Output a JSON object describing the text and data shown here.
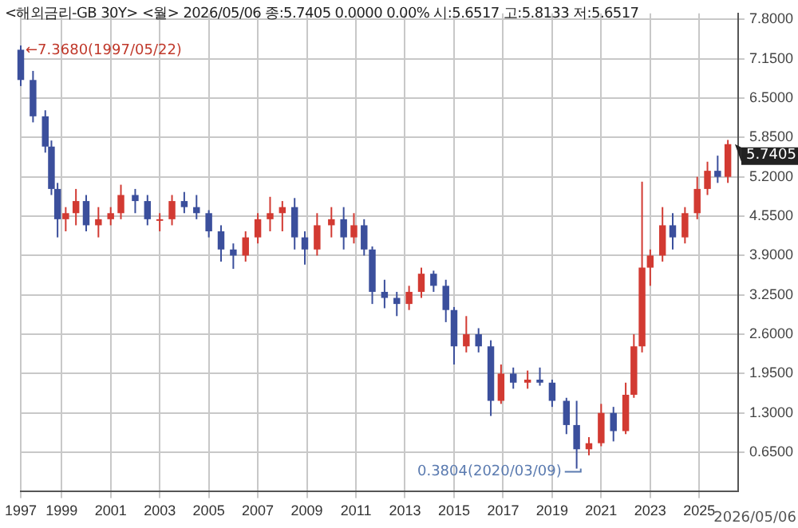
{
  "chart_data": {
    "type": "candlestick",
    "title": "<해외금리-GB 30Y> <월> 2026/05/06 종:5.7405 0.0000 0.00% 시:5.6517 고:5.8133 저:5.6517",
    "x": [
      "1997-05",
      "1997-11",
      "1998-05",
      "1998-08",
      "1998-11",
      "1999-03",
      "1999-08",
      "2000-01",
      "2000-07",
      "2001-01",
      "2001-06",
      "2002-01",
      "2002-07",
      "2003-01",
      "2003-07",
      "2004-01",
      "2004-07",
      "2005-01",
      "2005-07",
      "2006-01",
      "2006-07",
      "2007-01",
      "2007-07",
      "2008-01",
      "2008-07",
      "2008-12",
      "2009-06",
      "2010-01",
      "2010-07",
      "2010-12",
      "2011-05",
      "2011-09",
      "2012-03",
      "2012-09",
      "2013-03",
      "2013-09",
      "2014-03",
      "2014-09",
      "2015-01",
      "2015-07",
      "2016-01",
      "2016-07",
      "2016-12",
      "2017-06",
      "2018-01",
      "2018-07",
      "2019-01",
      "2019-08",
      "2020-01",
      "2020-07",
      "2021-01",
      "2021-07",
      "2022-01",
      "2022-05",
      "2022-09",
      "2023-01",
      "2023-07",
      "2023-12",
      "2024-06",
      "2024-12",
      "2025-05",
      "2025-10",
      "2026-03"
    ],
    "ohlc": [
      [
        7.3,
        7.37,
        6.7,
        6.8
      ],
      [
        6.8,
        6.95,
        6.1,
        6.2
      ],
      [
        6.2,
        6.3,
        5.6,
        5.7
      ],
      [
        5.7,
        5.8,
        4.9,
        5.0
      ],
      [
        5.0,
        5.1,
        4.2,
        4.5
      ],
      [
        4.5,
        4.7,
        4.3,
        4.6
      ],
      [
        4.6,
        5.0,
        4.4,
        4.8
      ],
      [
        4.8,
        4.9,
        4.3,
        4.4
      ],
      [
        4.4,
        4.7,
        4.2,
        4.5
      ],
      [
        4.5,
        4.7,
        4.4,
        4.6
      ],
      [
        4.6,
        5.07,
        4.5,
        4.9
      ],
      [
        4.9,
        5.0,
        4.6,
        4.8
      ],
      [
        4.8,
        4.9,
        4.4,
        4.5
      ],
      [
        4.5,
        4.6,
        4.3,
        4.5
      ],
      [
        4.5,
        4.9,
        4.4,
        4.8
      ],
      [
        4.8,
        4.95,
        4.6,
        4.7
      ],
      [
        4.7,
        4.9,
        4.5,
        4.6
      ],
      [
        4.6,
        4.65,
        4.2,
        4.3
      ],
      [
        4.3,
        4.4,
        3.8,
        4.0
      ],
      [
        4.0,
        4.1,
        3.68,
        3.9
      ],
      [
        3.9,
        4.3,
        3.8,
        4.2
      ],
      [
        4.2,
        4.6,
        4.1,
        4.5
      ],
      [
        4.5,
        4.87,
        4.3,
        4.6
      ],
      [
        4.6,
        4.8,
        4.3,
        4.7
      ],
      [
        4.7,
        4.85,
        4.0,
        4.2
      ],
      [
        4.2,
        4.3,
        3.75,
        4.0
      ],
      [
        4.0,
        4.6,
        3.9,
        4.4
      ],
      [
        4.4,
        4.7,
        4.2,
        4.5
      ],
      [
        4.5,
        4.7,
        4.0,
        4.2
      ],
      [
        4.2,
        4.6,
        4.1,
        4.4
      ],
      [
        4.4,
        4.5,
        3.9,
        4.0
      ],
      [
        4.0,
        4.05,
        3.1,
        3.3
      ],
      [
        3.3,
        3.5,
        3.03,
        3.2
      ],
      [
        3.2,
        3.3,
        2.9,
        3.1
      ],
      [
        3.1,
        3.4,
        3.0,
        3.3
      ],
      [
        3.3,
        3.7,
        3.2,
        3.6
      ],
      [
        3.6,
        3.65,
        3.3,
        3.4
      ],
      [
        3.4,
        3.5,
        2.8,
        3.0
      ],
      [
        3.0,
        3.05,
        2.1,
        2.4
      ],
      [
        2.4,
        2.9,
        2.3,
        2.6
      ],
      [
        2.6,
        2.7,
        2.3,
        2.4
      ],
      [
        2.4,
        2.5,
        1.25,
        1.5
      ],
      [
        1.5,
        2.1,
        1.45,
        1.95
      ],
      [
        1.95,
        2.05,
        1.7,
        1.8
      ],
      [
        1.8,
        2.0,
        1.7,
        1.85
      ],
      [
        1.85,
        2.05,
        1.75,
        1.8
      ],
      [
        1.8,
        1.85,
        1.4,
        1.5
      ],
      [
        1.5,
        1.55,
        0.95,
        1.1
      ],
      [
        1.1,
        1.5,
        0.38,
        0.7
      ],
      [
        0.7,
        0.9,
        0.6,
        0.8
      ],
      [
        0.8,
        1.45,
        0.75,
        1.3
      ],
      [
        1.3,
        1.4,
        0.83,
        1.0
      ],
      [
        1.0,
        1.8,
        0.95,
        1.6
      ],
      [
        1.6,
        2.6,
        1.55,
        2.4
      ],
      [
        2.4,
        5.12,
        2.3,
        3.7
      ],
      [
        3.7,
        4.0,
        3.4,
        3.9
      ],
      [
        3.9,
        4.7,
        3.8,
        4.4
      ],
      [
        4.4,
        4.6,
        4.0,
        4.2
      ],
      [
        4.2,
        4.7,
        4.1,
        4.6
      ],
      [
        4.6,
        5.2,
        4.5,
        5.0
      ],
      [
        5.0,
        5.45,
        4.9,
        5.3
      ],
      [
        5.3,
        5.55,
        5.1,
        5.2
      ],
      [
        5.2,
        5.81,
        5.1,
        5.74
      ]
    ],
    "colors": [
      "#3b4f9c",
      "#3b4f9c",
      "#3b4f9c",
      "#3b4f9c",
      "#3b4f9c",
      "#d23a32",
      "#d23a32",
      "#3b4f9c",
      "#d23a32",
      "#d23a32",
      "#d23a32",
      "#3b4f9c",
      "#3b4f9c",
      "#d23a32",
      "#d23a32",
      "#3b4f9c",
      "#3b4f9c",
      "#3b4f9c",
      "#3b4f9c",
      "#3b4f9c",
      "#d23a32",
      "#d23a32",
      "#d23a32",
      "#d23a32",
      "#3b4f9c",
      "#3b4f9c",
      "#d23a32",
      "#d23a32",
      "#3b4f9c",
      "#d23a32",
      "#3b4f9c",
      "#3b4f9c",
      "#3b4f9c",
      "#3b4f9c",
      "#d23a32",
      "#d23a32",
      "#3b4f9c",
      "#3b4f9c",
      "#3b4f9c",
      "#d23a32",
      "#3b4f9c",
      "#3b4f9c",
      "#d23a32",
      "#3b4f9c",
      "#d23a32",
      "#3b4f9c",
      "#3b4f9c",
      "#3b4f9c",
      "#3b4f9c",
      "#d23a32",
      "#d23a32",
      "#3b4f9c",
      "#d23a32",
      "#d23a32",
      "#d23a32",
      "#d23a32",
      "#d23a32",
      "#3b4f9c",
      "#d23a32",
      "#d23a32",
      "#d23a32",
      "#3b4f9c",
      "#d23a32"
    ],
    "xlim": [
      "1997-05",
      "2026-08"
    ],
    "xticks": [
      {
        "value": "1997-05",
        "label": "1997"
      },
      {
        "value": "1999",
        "label": "1999"
      },
      {
        "value": "2001",
        "label": "2001"
      },
      {
        "value": "2003",
        "label": "2003"
      },
      {
        "value": "2005",
        "label": "2005"
      },
      {
        "value": "2007",
        "label": "2007"
      },
      {
        "value": "2009",
        "label": "2009"
      },
      {
        "value": "2011",
        "label": "2011"
      },
      {
        "value": "2013",
        "label": "2013"
      },
      {
        "value": "2015",
        "label": "2015"
      },
      {
        "value": "2017",
        "label": "2017"
      },
      {
        "value": "2019",
        "label": "2019"
      },
      {
        "value": "2021",
        "label": "2021"
      },
      {
        "value": "2023",
        "label": "2023"
      },
      {
        "value": "2025",
        "label": "2025"
      }
    ],
    "ylim": [
      0,
      7.9
    ],
    "yticks": [
      {
        "value": 0.65,
        "label": "0.6500"
      },
      {
        "value": 1.3,
        "label": "1.3000"
      },
      {
        "value": 1.95,
        "label": "1.9500"
      },
      {
        "value": 2.6,
        "label": "2.6000"
      },
      {
        "value": 3.25,
        "label": "3.2500"
      },
      {
        "value": 3.9,
        "label": "3.9000"
      },
      {
        "value": 4.55,
        "label": "4.5500"
      },
      {
        "value": 5.2,
        "label": "5.2000"
      },
      {
        "value": 5.85,
        "label": "5.8500"
      },
      {
        "value": 6.5,
        "label": "6.5000"
      },
      {
        "value": 7.15,
        "label": "7.1500"
      },
      {
        "value": 7.8,
        "label": "7.8000"
      }
    ],
    "grid": true,
    "legend": false,
    "annotations": [
      {
        "text": "←7.3680(1997/05/22)",
        "x": "1997-05",
        "y": 7.368
      },
      {
        "text": "0.3804(2020/03/09)",
        "x": "2020-03",
        "y": 0.3804
      },
      {
        "text": "5.7405",
        "x": "2026-05",
        "y": 5.7405
      },
      "2026/05/06"
    ]
  }
}
